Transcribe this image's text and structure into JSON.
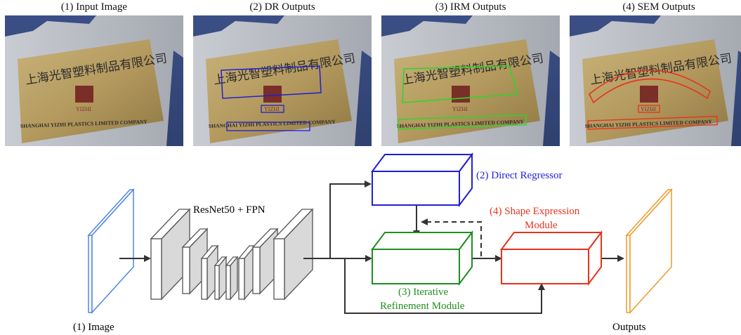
{
  "panels": [
    {
      "title": "(1) Input Image"
    },
    {
      "title": "(2) DR Outputs"
    },
    {
      "title": "(3) IRM Outputs"
    },
    {
      "title": "(4) SEM Outputs"
    }
  ],
  "sign": {
    "chinese_text": "上海光智塑料制品有限公司",
    "logo_text": "YIZHI",
    "english_text": "SHANGHAI YIZHI PLASTICS LIMITED COMPANY"
  },
  "diagram": {
    "image_label": "(1) Image",
    "backbone_label": "ResNet50 + FPN",
    "dr_label": "(2) Direct Regressor",
    "irm_label_1": "(3) Iterative",
    "irm_label_2": "Refinement Module",
    "sem_label_1": "(4) Shape Expression",
    "sem_label_2": "Module",
    "outputs_label": "Outputs"
  },
  "colors": {
    "input": "#4f86e6",
    "dr": "#1f1fd6",
    "irm": "#1e8e1e",
    "sem": "#e8321e",
    "output": "#ef9a2a",
    "layer_fill": "#d9d9d9",
    "arrow": "#333333"
  }
}
